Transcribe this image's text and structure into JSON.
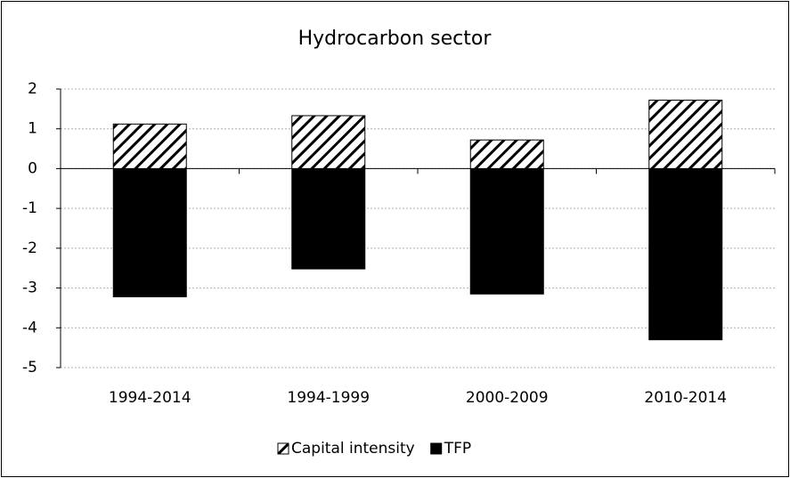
{
  "chart_data": {
    "type": "bar",
    "stacked": true,
    "title": "Hydrocarbon sector",
    "categories": [
      "1994-2014",
      "1994-1999",
      "2000-2009",
      "2010-2014"
    ],
    "series": [
      {
        "name": "Capital intensity",
        "color": "#000000",
        "pattern": "hatch",
        "values": [
          1.12,
          1.33,
          0.72,
          1.72
        ]
      },
      {
        "name": "TFP",
        "color": "#000000",
        "values": [
          -3.22,
          -2.52,
          -3.15,
          -4.3
        ]
      }
    ],
    "ylim": [
      -5,
      2
    ],
    "yticks": [
      -5,
      -4,
      -3,
      -2,
      -1,
      0,
      1,
      2
    ],
    "grid": true,
    "legend": "bottom"
  }
}
